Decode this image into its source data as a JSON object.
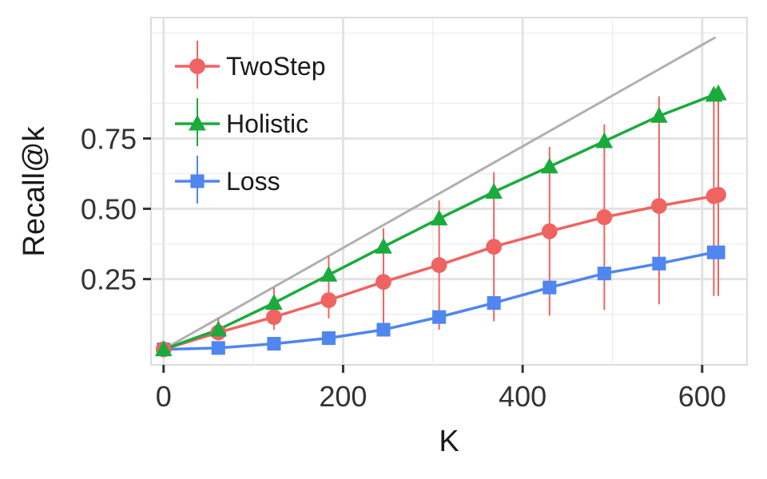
{
  "chart_data": {
    "type": "line",
    "xlabel": "K",
    "ylabel": "Recall@k",
    "xlim": [
      -14,
      650
    ],
    "ylim": [
      -0.055,
      1.18
    ],
    "x_ticks": [
      0,
      200,
      400,
      600
    ],
    "x_tick_labels": [
      "0",
      "200",
      "400",
      "600"
    ],
    "y_ticks": [
      0.25,
      0.5,
      0.75
    ],
    "y_tick_labels": [
      "0.25",
      "0.50",
      "0.75"
    ],
    "grid": true,
    "legend_position": "top-left",
    "reference_line": {
      "x": [
        0,
        615
      ],
      "y": [
        0,
        1.11
      ],
      "color": "#b0b0b0"
    },
    "series": [
      {
        "name": "TwoStep",
        "color": "#ef6461",
        "marker": "circle",
        "x": [
          0,
          61,
          123,
          184,
          245,
          307,
          368,
          430,
          491,
          552,
          613,
          618
        ],
        "y": [
          0.0,
          0.06,
          0.115,
          0.175,
          0.24,
          0.3,
          0.365,
          0.42,
          0.47,
          0.51,
          0.545,
          0.55
        ],
        "err_low": [
          0.0,
          0.04,
          0.07,
          0.11,
          0.08,
          0.07,
          0.1,
          0.12,
          0.14,
          0.16,
          0.19,
          0.19
        ],
        "err_high": [
          0.0,
          0.11,
          0.22,
          0.33,
          0.43,
          0.53,
          0.63,
          0.72,
          0.8,
          0.9,
          0.9,
          0.9
        ]
      },
      {
        "name": "Holistic",
        "color": "#1aab3d",
        "marker": "triangle",
        "x": [
          0,
          61,
          123,
          184,
          245,
          307,
          368,
          430,
          491,
          552,
          613,
          618
        ],
        "y": [
          0.0,
          0.07,
          0.165,
          0.265,
          0.365,
          0.465,
          0.56,
          0.65,
          0.74,
          0.83,
          0.905,
          0.91
        ]
      },
      {
        "name": "Loss",
        "color": "#4f86f0",
        "marker": "square",
        "x": [
          0,
          61,
          123,
          184,
          245,
          307,
          368,
          430,
          491,
          552,
          613,
          618
        ],
        "y": [
          0.0,
          0.005,
          0.02,
          0.04,
          0.07,
          0.115,
          0.165,
          0.22,
          0.27,
          0.305,
          0.345,
          0.345
        ]
      }
    ]
  }
}
